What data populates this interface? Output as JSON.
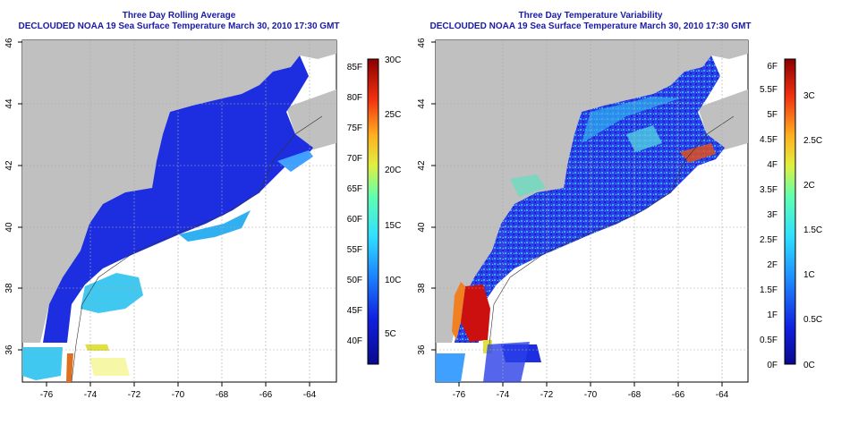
{
  "panels": [
    {
      "title": "Three Day Rolling Average",
      "subtitle": "DECLOUDED NOAA 19 Sea Surface Temperature March 30, 2010 17:30 GMT",
      "x_ticks": [
        "-76",
        "-74",
        "-72",
        "-70",
        "-68",
        "-66",
        "-64"
      ],
      "y_ticks": [
        "36",
        "38",
        "40",
        "42",
        "44",
        "46"
      ],
      "colorbar": {
        "left_labels": [
          "40F",
          "45F",
          "50F",
          "55F",
          "60F",
          "65F",
          "70F",
          "75F",
          "80F",
          "85F"
        ],
        "right_labels": [
          "5C",
          "10C",
          "15C",
          "20C",
          "25C",
          "30C"
        ]
      }
    },
    {
      "title": "Three Day Temperature Variability",
      "subtitle": "DECLOUDED NOAA 19 Sea Surface Temperature March 30, 2010 17:30 GMT",
      "x_ticks": [
        "-76",
        "-74",
        "-72",
        "-70",
        "-68",
        "-66",
        "-64"
      ],
      "y_ticks": [
        "36",
        "38",
        "40",
        "42",
        "44",
        "46"
      ],
      "colorbar": {
        "left_labels": [
          "0F",
          "0.5F",
          "1F",
          "1.5F",
          "2F",
          "2.5F",
          "3F",
          "3.5F",
          "4F",
          "4.5F",
          "5F",
          "5.5F",
          "6F"
        ],
        "right_labels": [
          "0C",
          "0.5C",
          "1C",
          "1.5C",
          "2C",
          "2.5C",
          "3C"
        ]
      }
    }
  ],
  "colors": {
    "land": "#c0c0c0",
    "ocean_cold": "#1c2ee0",
    "ocean_mid": "#3fa0ff",
    "ocean_warm": "#40e0e0",
    "hot": "#cc1010",
    "title_color": "#1a1aa6"
  }
}
